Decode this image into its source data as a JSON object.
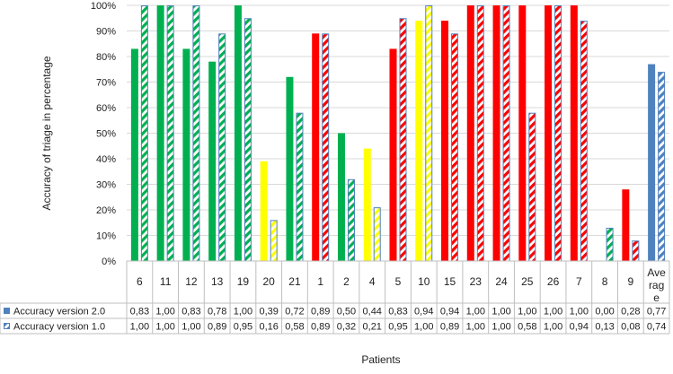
{
  "chart_data": {
    "type": "bar",
    "title": "",
    "xlabel": "Patients",
    "ylabel": "Accuracy of triage in percentage",
    "ylim": [
      0,
      1
    ],
    "y_ticks": [
      "0%",
      "10%",
      "20%",
      "30%",
      "40%",
      "50%",
      "60%",
      "70%",
      "80%",
      "90%",
      "100%"
    ],
    "categories": [
      "6",
      "11",
      "12",
      "13",
      "19",
      "20",
      "21",
      "1",
      "2",
      "4",
      "5",
      "10",
      "15",
      "23",
      "24",
      "25",
      "26",
      "7",
      "8",
      "9",
      "Average"
    ],
    "category_display": [
      "6",
      "11",
      "12",
      "13",
      "19",
      "20",
      "21",
      "1",
      "2",
      "4",
      "5",
      "10",
      "15",
      "23",
      "24",
      "25",
      "26",
      "7",
      "8",
      "9",
      "Ave|rag|e"
    ],
    "category_colors": [
      "#00b050",
      "#00b050",
      "#00b050",
      "#00b050",
      "#00b050",
      "#ffff00",
      "#00b050",
      "#ff0000",
      "#00b050",
      "#ffff00",
      "#ff0000",
      "#ffff00",
      "#ff0000",
      "#ff0000",
      "#ff0000",
      "#ff0000",
      "#ff0000",
      "#ff0000",
      "#00b050",
      "#ff0000",
      "#4f81bd"
    ],
    "grid": true,
    "legend": "table-left",
    "series": [
      {
        "name": "Accuracy version 2.0",
        "style": "solid",
        "values": [
          0.83,
          1.0,
          0.83,
          0.78,
          1.0,
          0.39,
          0.72,
          0.89,
          0.5,
          0.44,
          0.83,
          0.94,
          0.94,
          1.0,
          1.0,
          1.0,
          1.0,
          1.0,
          0.0,
          0.28,
          0.77
        ],
        "labels": [
          "0,83",
          "1,00",
          "0,83",
          "0,78",
          "1,00",
          "0,39",
          "0,72",
          "0,89",
          "0,50",
          "0,44",
          "0,83",
          "0,94",
          "0,94",
          "1,00",
          "1,00",
          "1,00",
          "1,00",
          "1,00",
          "0,00",
          "0,28",
          "0,77"
        ]
      },
      {
        "name": "Accuracy version 1.0",
        "style": "hatched",
        "values": [
          1.0,
          1.0,
          1.0,
          0.89,
          0.95,
          0.16,
          0.58,
          0.89,
          0.32,
          0.21,
          0.95,
          1.0,
          0.89,
          1.0,
          1.0,
          0.58,
          1.0,
          0.94,
          0.13,
          0.08,
          0.74
        ],
        "labels": [
          "1,00",
          "1,00",
          "1,00",
          "0,89",
          "0,95",
          "0,16",
          "0,58",
          "0,89",
          "0,32",
          "0,21",
          "0,95",
          "1,00",
          "0,89",
          "1,00",
          "1,00",
          "0,58",
          "1,00",
          "0,94",
          "0,13",
          "0,08",
          "0,74"
        ]
      }
    ],
    "legend_colors": {
      "solid": "#4f81bd",
      "hatched": "#4f81bd"
    }
  }
}
